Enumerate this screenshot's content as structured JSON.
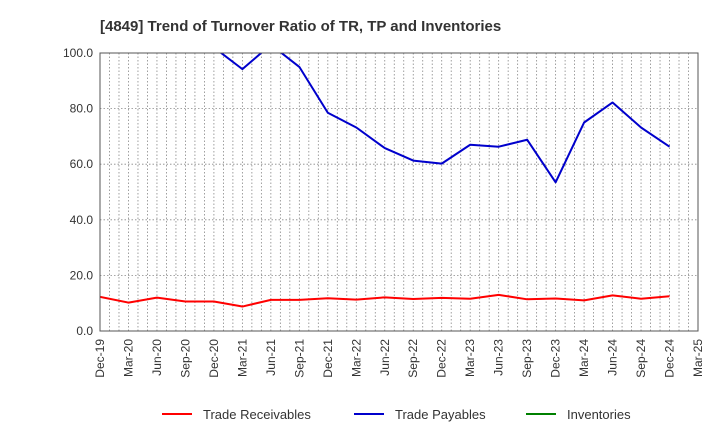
{
  "chart_data": {
    "type": "line",
    "title": "[4849]  Trend of Turnover Ratio of TR, TP and Inventories",
    "xlabel": "",
    "ylabel": "",
    "ylim": [
      0,
      100
    ],
    "y_ticks": [
      "0.0",
      "20.0",
      "40.0",
      "60.0",
      "80.0",
      "100.0"
    ],
    "categories": [
      "Dec-19",
      "Mar-20",
      "Jun-20",
      "Sep-20",
      "Dec-20",
      "Mar-21",
      "Jun-21",
      "Sep-21",
      "Dec-21",
      "Mar-22",
      "Jun-22",
      "Sep-22",
      "Dec-22",
      "Mar-23",
      "Jun-23",
      "Sep-23",
      "Dec-23",
      "Mar-24",
      "Jun-24",
      "Sep-24",
      "Dec-24",
      "Mar-25"
    ],
    "grid": true,
    "legend_position": "bottom",
    "series": [
      {
        "name": "Trade Receivables",
        "color": "#ff0000",
        "values": [
          12.3,
          10.2,
          12.0,
          10.6,
          10.6,
          8.8,
          11.2,
          11.2,
          11.8,
          11.3,
          12.1,
          11.5,
          11.9,
          11.6,
          13.0,
          11.4,
          11.7,
          11.0,
          12.8,
          11.6,
          12.5,
          null
        ]
      },
      {
        "name": "Trade Payables",
        "color": "#0000cc",
        "values": [
          null,
          null,
          null,
          null,
          102.0,
          94.2,
          103.0,
          95.0,
          78.5,
          73.2,
          65.8,
          61.3,
          60.2,
          67.0,
          66.3,
          68.8,
          53.5,
          75.0,
          82.2,
          73.2,
          66.3,
          null
        ]
      },
      {
        "name": "Inventories",
        "color": "#008000",
        "values": [
          null,
          null,
          null,
          null,
          null,
          null,
          null,
          null,
          null,
          null,
          null,
          null,
          null,
          null,
          null,
          null,
          null,
          null,
          null,
          null,
          null,
          null
        ]
      }
    ]
  }
}
